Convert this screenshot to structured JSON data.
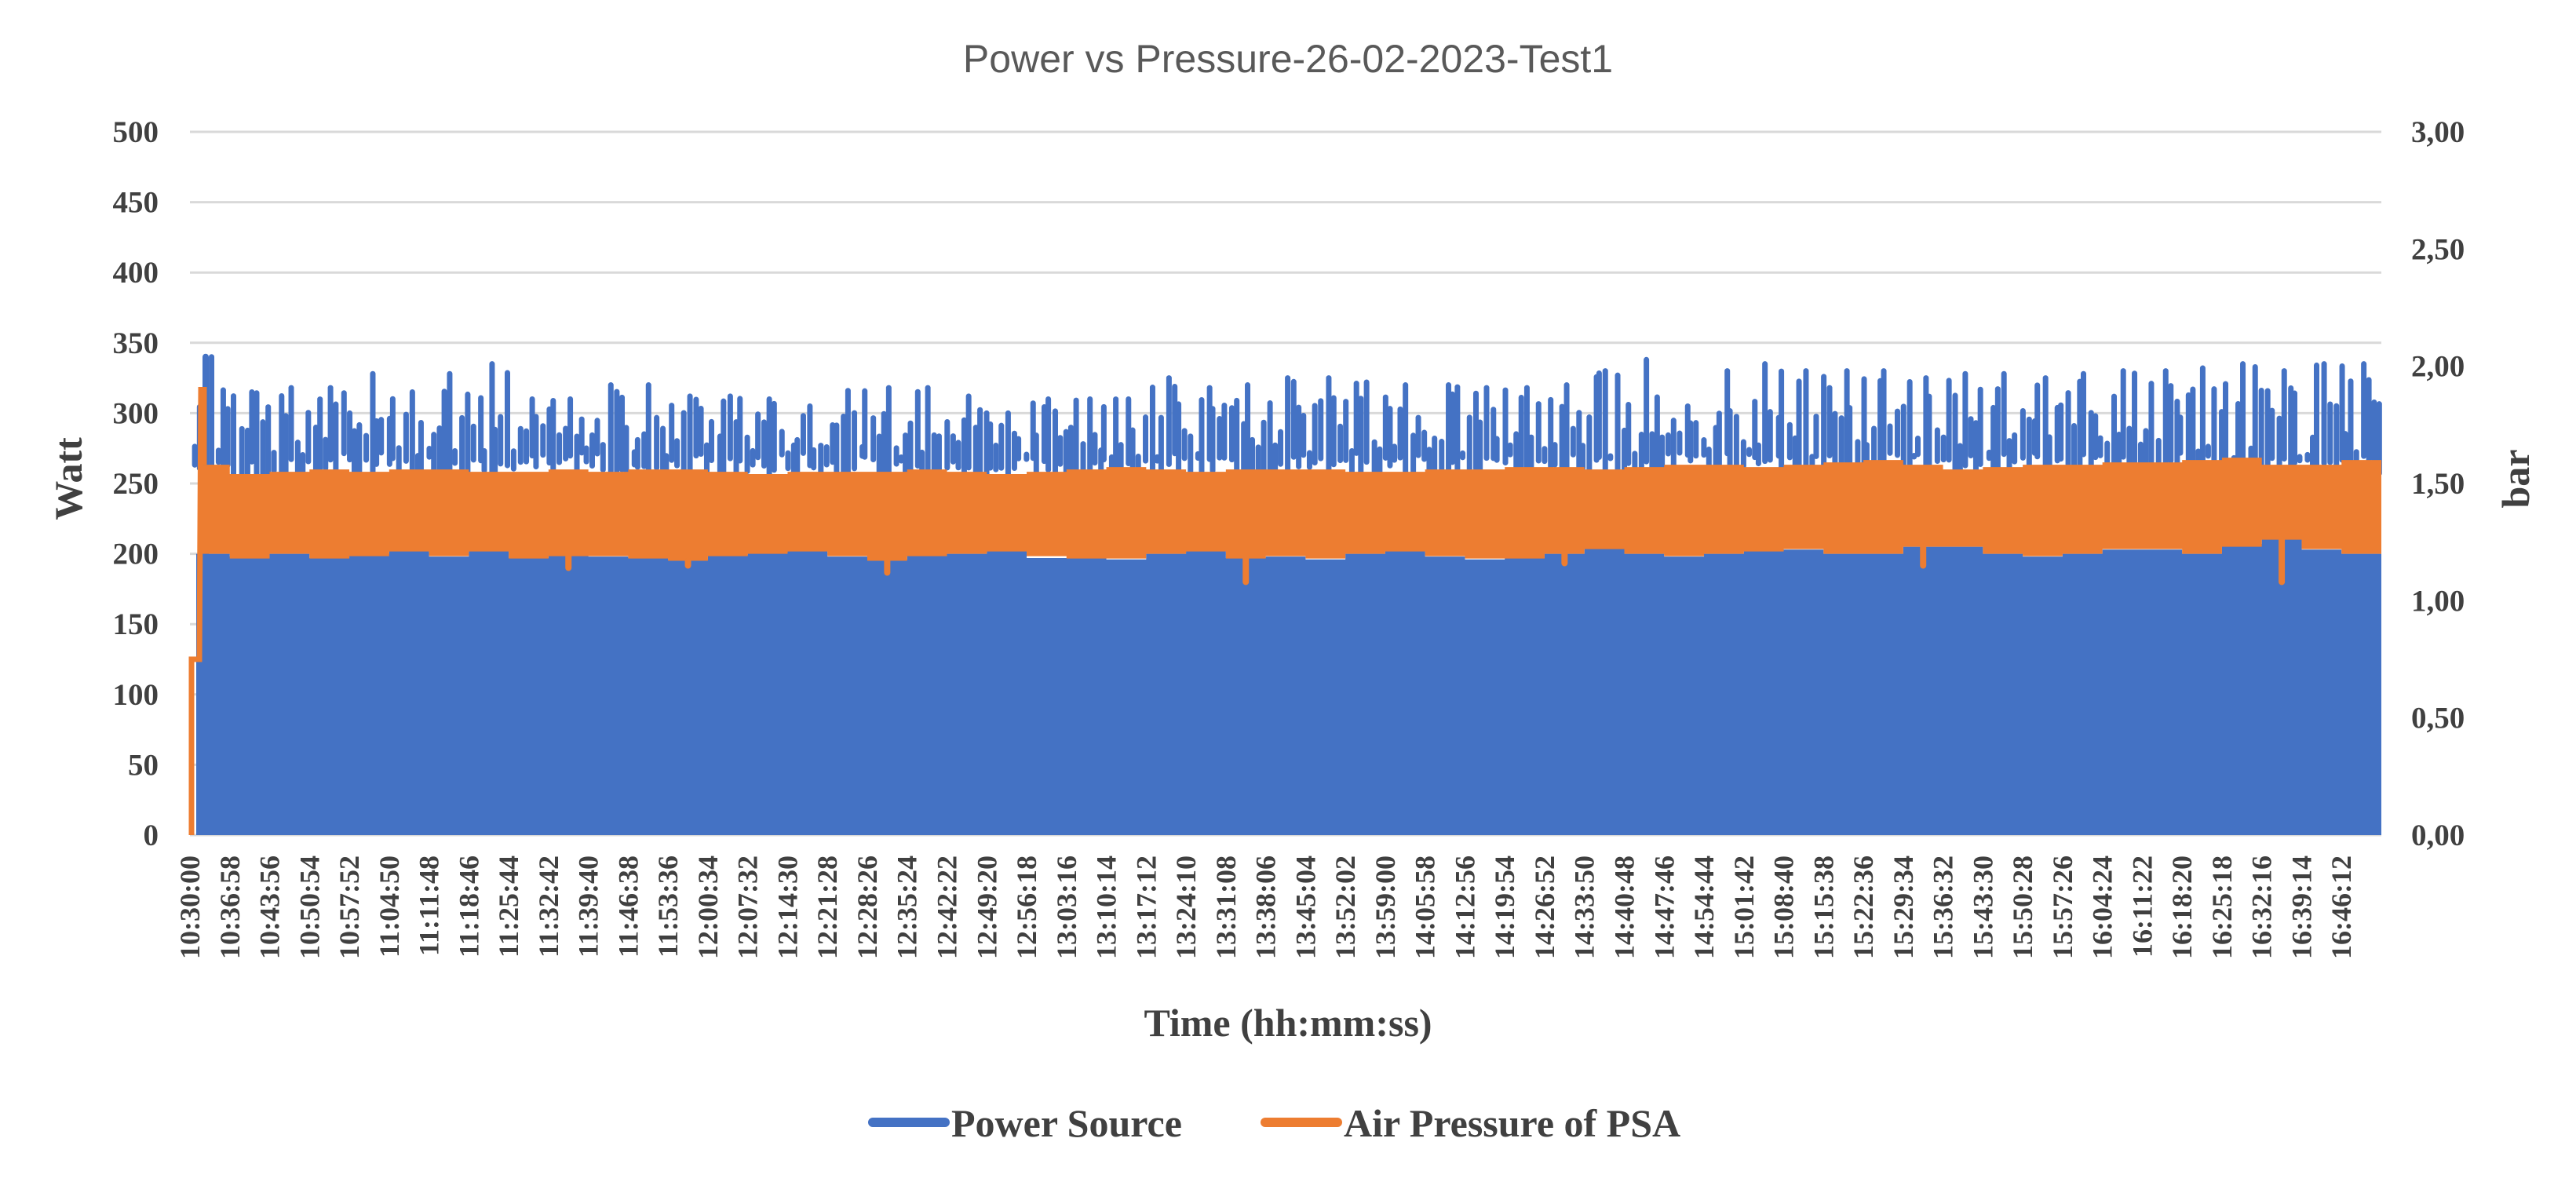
{
  "chart_data": {
    "type": "area",
    "title": "Power vs Pressure-26-02-2023-Test1",
    "xlabel": "Time (hh:mm:ss)",
    "ylabel_left": "Watt",
    "ylabel_right": "bar",
    "y_left_range": [
      0,
      500
    ],
    "y_right_range": [
      0,
      3
    ],
    "y_left_ticks": [
      "0",
      "50",
      "100",
      "150",
      "200",
      "250",
      "300",
      "350",
      "400",
      "450",
      "500"
    ],
    "y_right_ticks": [
      "0,00",
      "0,50",
      "1,00",
      "1,50",
      "2,00",
      "2,50",
      "3,00"
    ],
    "grid": true,
    "legend_position": "bottom",
    "x_tick_labels": [
      "10:30:00",
      "10:36:58",
      "10:43:56",
      "10:50:54",
      "10:57:52",
      "11:04:50",
      "11:11:48",
      "11:18:46",
      "11:25:44",
      "11:32:42",
      "11:39:40",
      "11:46:38",
      "11:53:36",
      "12:00:34",
      "12:07:32",
      "12:14:30",
      "12:21:28",
      "12:28:26",
      "12:35:24",
      "12:42:22",
      "12:49:20",
      "12:56:18",
      "13:03:16",
      "13:10:14",
      "13:17:12",
      "13:24:10",
      "13:31:08",
      "13:38:06",
      "13:45:04",
      "13:52:02",
      "13:59:00",
      "14:05:58",
      "14:12:56",
      "14:19:54",
      "14:26:52",
      "14:33:50",
      "14:40:48",
      "14:47:46",
      "14:54:44",
      "15:01:42",
      "15:08:40",
      "15:15:38",
      "15:22:36",
      "15:29:34",
      "15:36:32",
      "15:43:30",
      "15:50:28",
      "15:57:26",
      "16:04:24",
      "16:11:22",
      "16:18:20",
      "16:25:18",
      "16:32:16",
      "16:39:14",
      "16:46:12"
    ],
    "series": [
      {
        "name": "Power Source",
        "axis": "left",
        "color": "#4472c4",
        "style": "area",
        "x": [
          "10:30:00",
          "10:36:58",
          "10:43:56",
          "10:50:54",
          "10:57:52",
          "11:04:50",
          "11:11:48",
          "11:18:46",
          "11:25:44",
          "11:32:42",
          "11:39:40",
          "11:46:38",
          "11:53:36",
          "12:00:34",
          "12:07:32",
          "12:14:30",
          "12:21:28",
          "12:28:26",
          "12:35:24",
          "12:42:22",
          "12:49:20",
          "12:56:18",
          "13:03:16",
          "13:10:14",
          "13:17:12",
          "13:24:10",
          "13:31:08",
          "13:38:06",
          "13:45:04",
          "13:52:02",
          "13:59:00",
          "14:05:58",
          "14:12:56",
          "14:19:54",
          "14:26:52",
          "14:33:50",
          "14:40:48",
          "14:47:46",
          "14:54:44",
          "15:01:42",
          "15:08:40",
          "15:15:38",
          "15:22:36",
          "15:29:34",
          "15:36:32",
          "15:43:30",
          "15:50:28",
          "15:57:26",
          "16:04:24",
          "16:11:22",
          "16:18:20",
          "16:25:18",
          "16:32:16",
          "16:39:14",
          "16:46:12"
        ],
        "low_values": [
          200,
          198,
          200,
          197,
          200,
          203,
          198,
          202,
          197,
          200,
          198,
          197,
          196,
          199,
          201,
          202,
          198,
          196,
          199,
          200,
          203,
          197,
          197,
          196,
          200,
          203,
          197,
          198,
          196,
          200,
          203,
          198,
          196,
          197,
          200,
          205,
          200,
          198,
          200,
          203,
          203,
          200,
          200,
          205,
          205,
          200,
          198,
          200,
          203,
          203,
          200,
          207,
          212,
          203,
          200
        ],
        "peak_values": [
          340,
          315,
          318,
          318,
          328,
          315,
          328,
          335,
          310,
          310,
          320,
          320,
          312,
          312,
          310,
          305,
          316,
          318,
          318,
          312,
          300,
          310,
          310,
          310,
          325,
          318,
          320,
          325,
          325,
          322,
          320,
          320,
          318,
          318,
          320,
          330,
          338,
          305,
          330,
          335,
          330,
          330,
          330,
          325,
          328,
          328,
          325,
          328,
          330,
          330,
          332,
          335,
          330,
          335,
          335
        ]
      },
      {
        "name": "Air Pressure of PSA",
        "axis": "right",
        "color": "#ed7d31",
        "style": "band",
        "x": [
          "10:30:00",
          "10:36:58",
          "10:43:56",
          "10:50:54",
          "10:57:52",
          "11:04:50",
          "11:11:48",
          "11:18:46",
          "11:25:44",
          "11:32:42",
          "11:39:40",
          "11:46:38",
          "11:53:36",
          "12:00:34",
          "12:07:32",
          "12:14:30",
          "12:21:28",
          "12:28:26",
          "12:35:24",
          "12:42:22",
          "12:49:20",
          "12:56:18",
          "13:03:16",
          "13:10:14",
          "13:17:12",
          "13:24:10",
          "13:31:08",
          "13:38:06",
          "13:45:04",
          "13:52:02",
          "13:59:00",
          "14:05:58",
          "14:12:56",
          "14:19:54",
          "14:26:52",
          "14:33:50",
          "14:40:48",
          "14:47:46",
          "14:54:44",
          "15:01:42",
          "15:08:40",
          "15:15:38",
          "15:22:36",
          "15:29:34",
          "15:36:32",
          "15:43:30",
          "15:50:28",
          "15:57:26",
          "16:04:24",
          "16:11:22",
          "16:18:20",
          "16:25:18",
          "16:32:16",
          "16:39:14",
          "16:46:12"
        ],
        "low_values": [
          1.2,
          1.18,
          1.2,
          1.18,
          1.19,
          1.21,
          1.19,
          1.21,
          1.18,
          1.19,
          1.19,
          1.18,
          1.17,
          1.19,
          1.2,
          1.21,
          1.19,
          1.17,
          1.19,
          1.2,
          1.21,
          1.19,
          1.18,
          1.18,
          1.2,
          1.21,
          1.18,
          1.19,
          1.18,
          1.2,
          1.21,
          1.19,
          1.18,
          1.18,
          1.2,
          1.22,
          1.2,
          1.19,
          1.2,
          1.21,
          1.22,
          1.2,
          1.2,
          1.23,
          1.23,
          1.2,
          1.19,
          1.2,
          1.22,
          1.22,
          1.2,
          1.23,
          1.26,
          1.22,
          1.2
        ],
        "high_values": [
          1.58,
          1.54,
          1.55,
          1.56,
          1.55,
          1.56,
          1.56,
          1.55,
          1.55,
          1.56,
          1.55,
          1.56,
          1.56,
          1.55,
          1.54,
          1.55,
          1.55,
          1.55,
          1.56,
          1.55,
          1.54,
          1.55,
          1.56,
          1.57,
          1.56,
          1.55,
          1.56,
          1.56,
          1.56,
          1.55,
          1.55,
          1.56,
          1.56,
          1.57,
          1.57,
          1.56,
          1.57,
          1.58,
          1.58,
          1.57,
          1.58,
          1.59,
          1.6,
          1.58,
          1.56,
          1.57,
          1.58,
          1.58,
          1.59,
          1.59,
          1.6,
          1.61,
          1.58,
          1.58,
          1.6
        ],
        "start_value": 0.75,
        "start_spike": 1.9,
        "dips": [
          {
            "x": "11:32:42",
            "value": 1.14
          },
          {
            "x": "11:53:36",
            "value": 1.15
          },
          {
            "x": "12:28:26",
            "value": 1.12
          },
          {
            "x": "13:31:08",
            "value": 1.08
          },
          {
            "x": "14:26:52",
            "value": 1.16
          },
          {
            "x": "15:29:34",
            "value": 1.15
          },
          {
            "x": "16:32:16",
            "value": 1.08
          }
        ]
      }
    ]
  }
}
